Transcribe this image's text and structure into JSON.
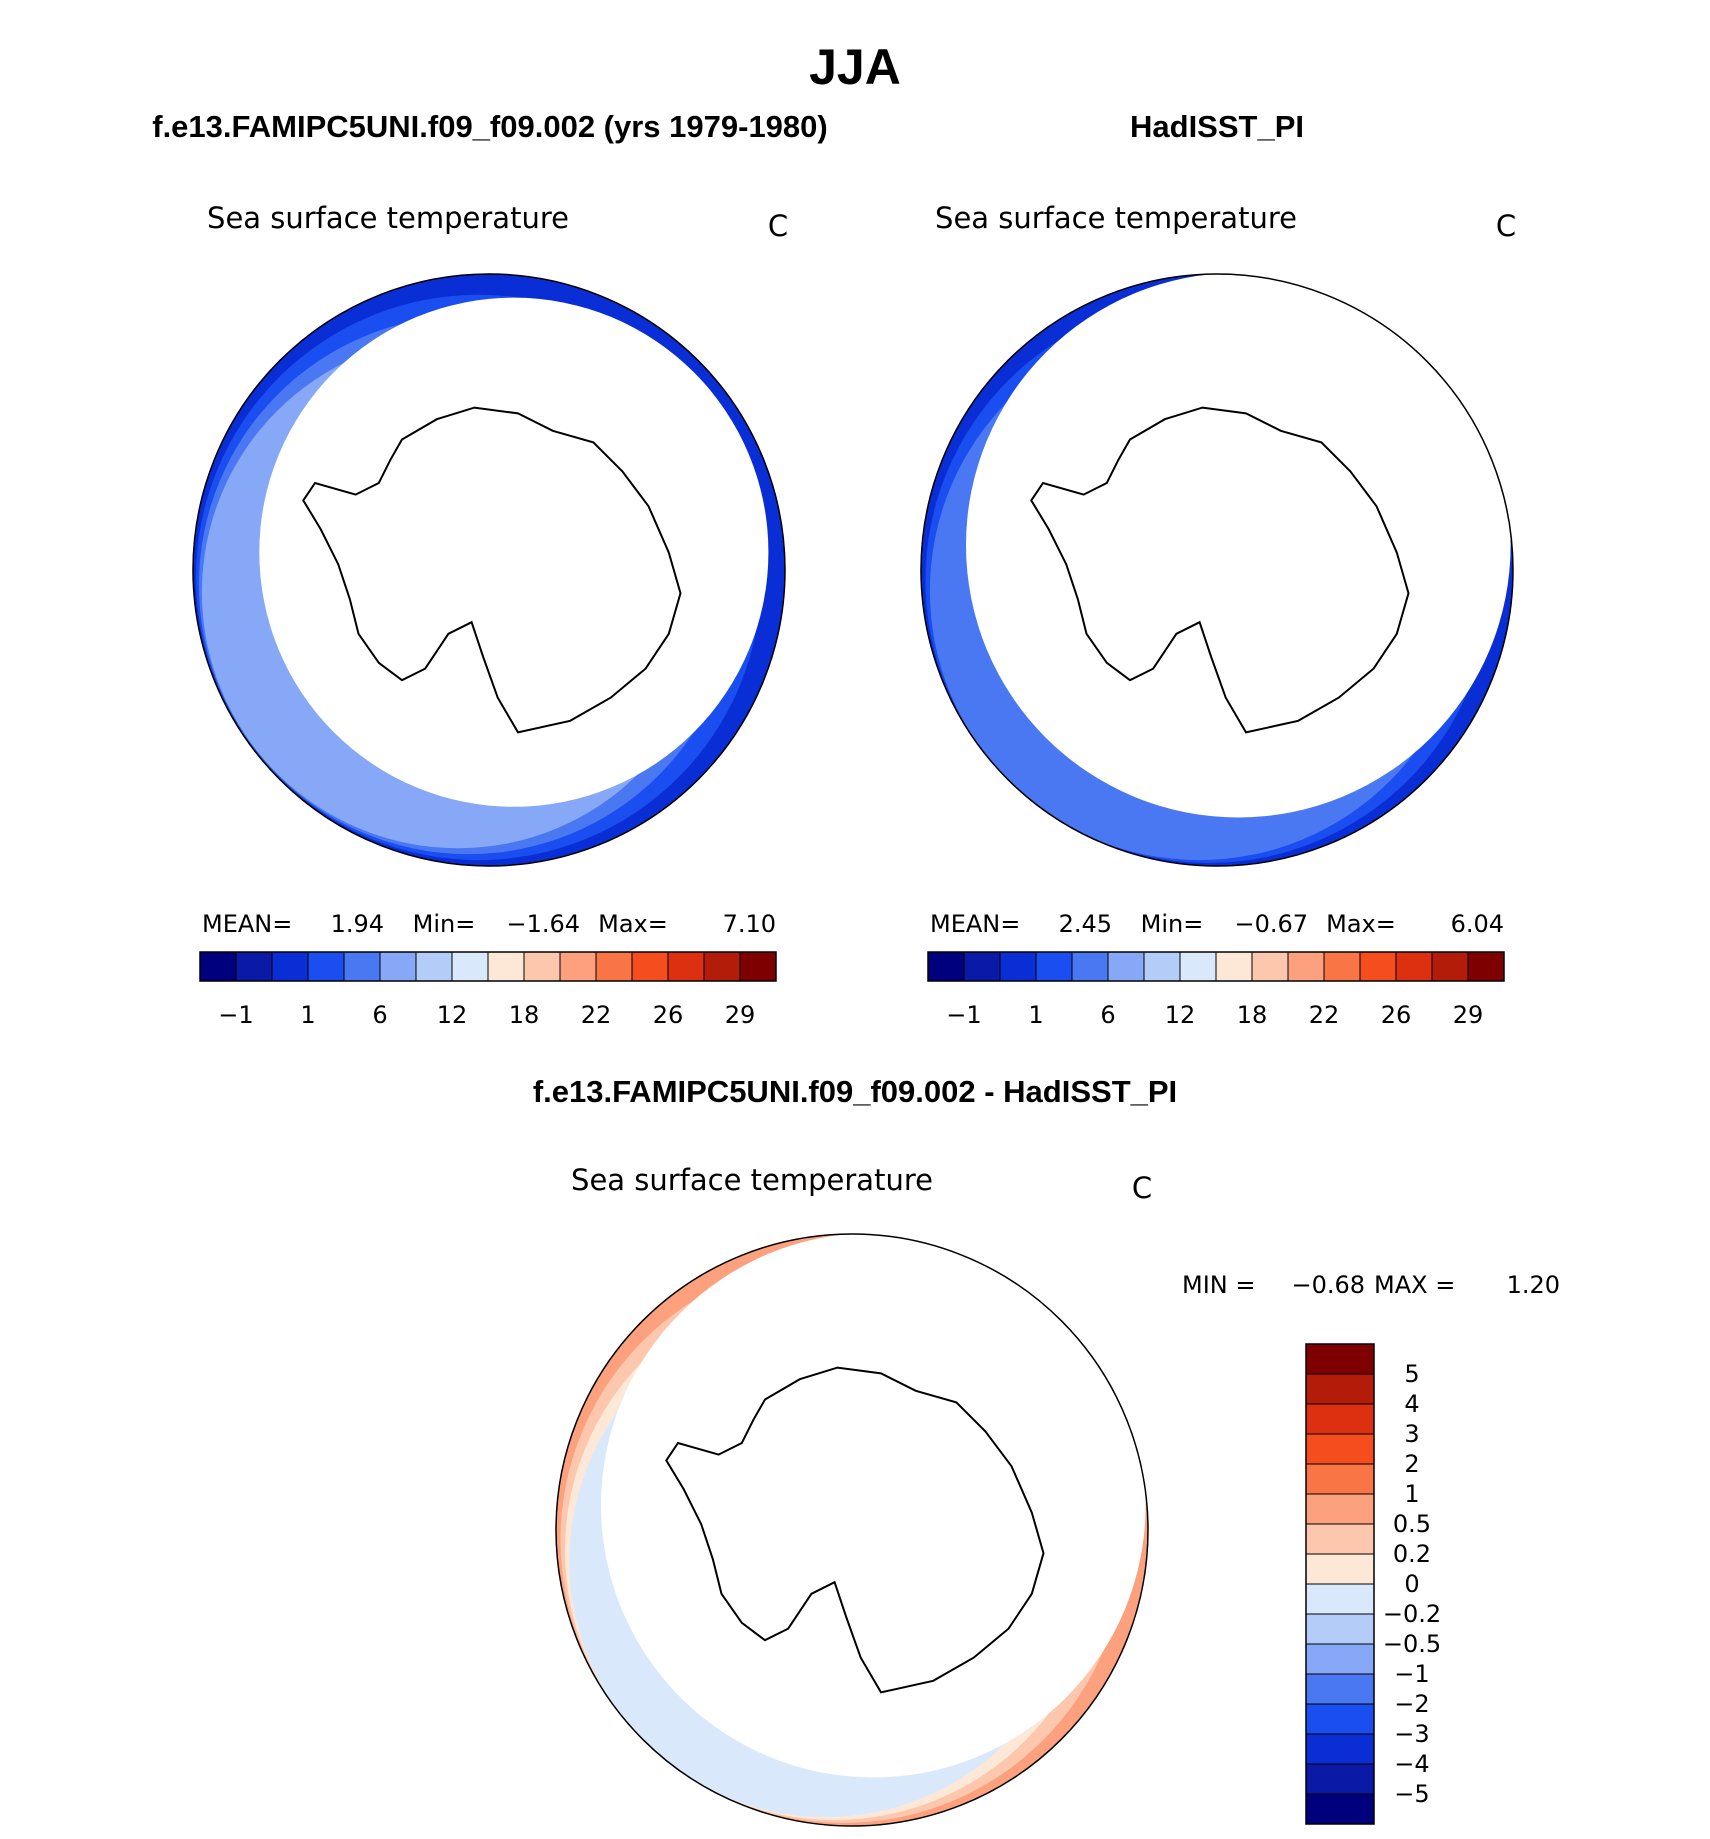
{
  "figure": {
    "season": "JJA",
    "colors": {
      "land": "#ffffff",
      "coast": "#000000",
      "circle": "#000000"
    }
  },
  "chart_data": [
    {
      "type": "heatmap",
      "projection": "south-polar-stereographic",
      "case_title": "f.e13.FAMIPC5UNI.f09_f09.002 (yrs 1979-1980)",
      "variable": "Sea surface temperature",
      "units": "C",
      "stats": {
        "mean_label": "MEAN=",
        "mean": "1.94",
        "min_label": "Min=",
        "min": "−1.64",
        "max_label": "Max=",
        "max": "7.10"
      },
      "colorbar": {
        "orientation": "horizontal",
        "colors": [
          "#00007f",
          "#0a1aa6",
          "#0a2ed6",
          "#1a4ef0",
          "#4a78f2",
          "#86a8f7",
          "#b4ccf8",
          "#dae8fb",
          "#fde8d7",
          "#fcc7ac",
          "#fca07d",
          "#fa7546",
          "#f54d1e",
          "#dc3010",
          "#b41c0a",
          "#7f0000"
        ],
        "tick_labels": [
          "−1",
          "1",
          "6",
          "12",
          "18",
          "22",
          "26",
          "29"
        ]
      },
      "ocean_bands": [
        "#0a2ed6",
        "#1a4ef0",
        "#4a78f2",
        "#86a8f7"
      ]
    },
    {
      "type": "heatmap",
      "projection": "south-polar-stereographic",
      "case_title": "HadISST_PI",
      "variable": "Sea surface temperature",
      "units": "C",
      "stats": {
        "mean_label": "MEAN=",
        "mean": "2.45",
        "min_label": "Min=",
        "min": "−0.67",
        "max_label": "Max=",
        "max": "6.04"
      },
      "colorbar": {
        "orientation": "horizontal",
        "colors": [
          "#00007f",
          "#0a1aa6",
          "#0a2ed6",
          "#1a4ef0",
          "#4a78f2",
          "#86a8f7",
          "#b4ccf8",
          "#dae8fb",
          "#fde8d7",
          "#fcc7ac",
          "#fca07d",
          "#fa7546",
          "#f54d1e",
          "#dc3010",
          "#b41c0a",
          "#7f0000"
        ],
        "tick_labels": [
          "−1",
          "1",
          "6",
          "12",
          "18",
          "22",
          "26",
          "29"
        ]
      },
      "ocean_bands": [
        "#0a2ed6",
        "#1a4ef0",
        "#4a78f2"
      ]
    },
    {
      "type": "heatmap",
      "projection": "south-polar-stereographic",
      "case_title": "f.e13.FAMIPC5UNI.f09_f09.002 - HadISST_PI",
      "variable": "Sea surface temperature",
      "units": "C",
      "stats": {
        "min_label": "MIN =",
        "min": "−0.68",
        "max_label": "MAX =",
        "max": "1.20"
      },
      "colorbar": {
        "orientation": "vertical",
        "colors": [
          "#00007f",
          "#0a1aa6",
          "#0a2ed6",
          "#1a4ef0",
          "#4a78f2",
          "#86a8f7",
          "#b4ccf8",
          "#dae8fb",
          "#fde8d7",
          "#fcc7ac",
          "#fca07d",
          "#fa7546",
          "#f54d1e",
          "#dc3010",
          "#b41c0a",
          "#7f0000"
        ],
        "tick_labels": [
          "−5",
          "−4",
          "−3",
          "−2",
          "−1",
          "−0.5",
          "−0.2",
          "0",
          "0.2",
          "0.5",
          "1",
          "2",
          "3",
          "4",
          "5"
        ]
      },
      "ocean_bands": [
        "#fca07d",
        "#fcc7ac",
        "#fde8d7",
        "#dae8fb"
      ]
    }
  ]
}
